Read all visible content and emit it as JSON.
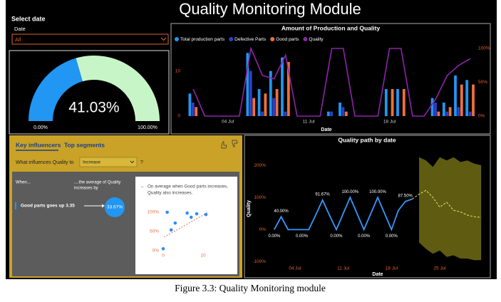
{
  "header": {
    "title": "Quality Monitoring Module"
  },
  "filter": {
    "title": "Select date",
    "label": "Date",
    "selected": "All"
  },
  "influencers": {
    "tabs": [
      "Key influencers",
      "Top segments"
    ],
    "question": "What influences Quality to",
    "choice": "Increase",
    "help": "?",
    "when_header": "When...",
    "effect_header": [
      "....the average of Quality",
      "increases by"
    ],
    "factor": "Good parts goes up 3.35",
    "effect": "33.67%",
    "card_text": [
      "On average when Good parts increases,",
      "Quality also increases."
    ]
  },
  "chart_data": [
    {
      "type": "gauge",
      "value": 41.03,
      "value_label": "41.03%",
      "min": {
        "value": 0,
        "label": "0.00%"
      },
      "max": {
        "value": 100,
        "label": "100.00%"
      },
      "color": "#2196f3",
      "track_color": "#c8f5c8"
    },
    {
      "type": "combo",
      "title": "Amount of Production and Quality",
      "xlabel": "Date",
      "categories": [
        null,
        null,
        null,
        "04 Jul",
        null,
        null,
        null,
        null,
        null,
        null,
        "11 Jul",
        null,
        null,
        null,
        null,
        null,
        null,
        "18 Jul",
        null,
        null,
        null,
        null,
        null,
        null,
        null
      ],
      "series": [
        {
          "name": "Total production parts",
          "kind": "bar",
          "color": "#2196f3",
          "values": [
            5,
            null,
            null,
            null,
            null,
            14,
            6,
            10,
            13,
            null,
            null,
            null,
            1,
            3,
            null,
            null,
            null,
            6,
            6,
            null,
            null,
            4,
            3,
            9,
            8
          ]
        },
        {
          "name": "Defective Parts",
          "kind": "bar",
          "color": "#2f3fc8",
          "values": [
            3,
            null,
            null,
            null,
            null,
            10,
            1,
            4,
            1,
            null,
            null,
            null,
            1,
            2,
            null,
            null,
            null,
            0,
            0,
            null,
            null,
            3,
            1,
            2,
            1
          ]
        },
        {
          "name": "Good parts",
          "kind": "bar",
          "color": "#f0703a",
          "values": [
            2,
            null,
            null,
            null,
            null,
            4,
            5,
            6,
            12,
            null,
            null,
            null,
            0,
            1,
            null,
            null,
            null,
            6,
            6,
            null,
            null,
            1,
            2,
            7,
            7
          ]
        },
        {
          "name": "Quality",
          "kind": "line",
          "axis": "y2",
          "color": "#8e24aa",
          "values": [
            40,
            0,
            0,
            0,
            0,
            100,
            60,
            55,
            90,
            0,
            0,
            0,
            100,
            100,
            0,
            0,
            0,
            100,
            100,
            0,
            0,
            25,
            60,
            75,
            85
          ]
        }
      ],
      "ylim": [
        0,
        15
      ],
      "yticks": [
        0,
        10
      ],
      "y2lim": [
        0,
        100
      ],
      "y2ticks": [
        {
          "value": 0,
          "label": "0%"
        },
        {
          "value": 50,
          "label": "50%"
        },
        {
          "value": 100,
          "label": "100%"
        }
      ],
      "legend": "top-left",
      "grid": false
    },
    {
      "type": "line",
      "title": "Quality path by date",
      "xlabel": "Date",
      "ylabel": "Quality",
      "categories": [
        null,
        null,
        null,
        "04 Jul",
        null,
        null,
        null,
        null,
        null,
        null,
        "11 Jul",
        null,
        null,
        null,
        null,
        null,
        null,
        "18 Jul",
        null,
        null,
        null,
        null,
        null,
        null,
        "25 Jul",
        null,
        null,
        null,
        null,
        null,
        null
      ],
      "series": [
        {
          "color": "#3399ff",
          "dash": false,
          "values": [
            0,
            40,
            0,
            0,
            0,
            0,
            45,
            91.67,
            45,
            0,
            50,
            100,
            50,
            0,
            50,
            100,
            50,
            0,
            60,
            87.5,
            95,
            null,
            null,
            null,
            null,
            null,
            null,
            null,
            null,
            null,
            null
          ],
          "value_labels": [
            "0.00%",
            "40.00%",
            null,
            null,
            "0.00%",
            null,
            null,
            "91.67%",
            null,
            "0.00%",
            null,
            "100.00%",
            null,
            "0.00%",
            null,
            "100.00%",
            null,
            "0.00%",
            null,
            "87.50%",
            null,
            null,
            null,
            null,
            null,
            null,
            null,
            null,
            null,
            null,
            null
          ]
        },
        {
          "color": "#e5e26a",
          "dash": true,
          "values": [
            null,
            null,
            null,
            null,
            null,
            null,
            null,
            null,
            null,
            null,
            null,
            null,
            null,
            null,
            null,
            null,
            null,
            null,
            null,
            null,
            95,
            110,
            122,
            100,
            70,
            85,
            60,
            55,
            45,
            40,
            38
          ]
        }
      ],
      "band": {
        "color": "#5f5c12",
        "upper": [
          null,
          null,
          null,
          null,
          null,
          null,
          null,
          null,
          null,
          null,
          null,
          null,
          null,
          null,
          null,
          null,
          null,
          null,
          null,
          null,
          null,
          225,
          215,
          195,
          225,
          215,
          225,
          210,
          215,
          205,
          200
        ],
        "lower": [
          null,
          null,
          null,
          null,
          null,
          null,
          null,
          null,
          null,
          null,
          null,
          null,
          null,
          null,
          null,
          null,
          null,
          null,
          null,
          null,
          null,
          -40,
          -60,
          -75,
          -65,
          -85,
          -80,
          -90,
          -90,
          -95,
          -95
        ]
      },
      "ylim": [
        -110,
        240
      ],
      "yticks": [
        {
          "value": -100,
          "label": "-100%"
        },
        {
          "value": 0,
          "label": "0%"
        },
        {
          "value": 100,
          "label": "100%"
        },
        {
          "value": 200,
          "label": "200%"
        }
      ],
      "grid": false
    },
    {
      "type": "scatter",
      "color": "#2d8cff",
      "x": [
        0,
        1,
        2,
        3,
        6,
        7,
        8.4,
        10.7
      ],
      "y": [
        5,
        100,
        54,
        72,
        98,
        87,
        96,
        94
      ],
      "xlim": [
        0,
        12
      ],
      "xticks": [
        0,
        10
      ],
      "ylim": [
        0,
        110
      ],
      "yticks": [
        {
          "value": 0,
          "label": "0%"
        },
        {
          "value": 50,
          "label": "50%"
        },
        {
          "value": 100,
          "label": "100%"
        }
      ]
    }
  ],
  "caption": "Figure 3.3: Quality Monitoring module"
}
